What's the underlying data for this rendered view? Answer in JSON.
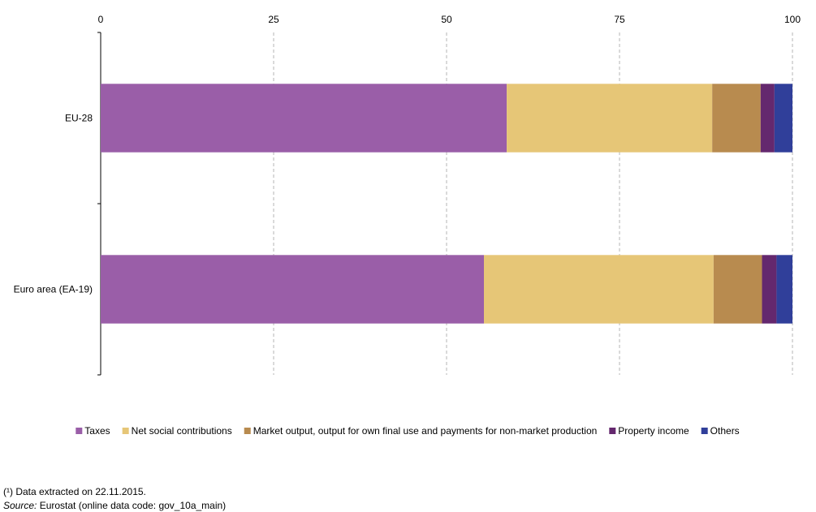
{
  "chart_data": {
    "type": "bar",
    "orientation": "horizontal",
    "stacked": true,
    "categories": [
      "EU-28",
      "Euro area (EA-19)"
    ],
    "series": [
      {
        "name": "Taxes",
        "color": "#9a5ea8",
        "values": [
          58.7,
          55.4
        ]
      },
      {
        "name": "Net social contributions",
        "color": "#e6c677",
        "values": [
          29.7,
          33.2
        ]
      },
      {
        "name": "Market output, output for own final use and payments for non-market production",
        "color": "#b88b4f",
        "values": [
          7.0,
          7.0
        ]
      },
      {
        "name": "Property income",
        "color": "#64286e",
        "values": [
          2.0,
          2.1
        ]
      },
      {
        "name": "Others",
        "color": "#303f9a",
        "values": [
          2.6,
          2.3
        ]
      }
    ],
    "xlim": [
      0,
      100
    ],
    "xticks": [
      0,
      25,
      50,
      75,
      100
    ],
    "xtick_labels": [
      "0",
      "25",
      "50",
      "75",
      "100"
    ],
    "grid": true,
    "legend_position": "bottom"
  },
  "footnotes": {
    "note": "(¹) Data extracted on 22.11.2015.",
    "source_prefix": "Source:",
    "source_text": " Eurostat (online data code: gov_10a_main)"
  }
}
